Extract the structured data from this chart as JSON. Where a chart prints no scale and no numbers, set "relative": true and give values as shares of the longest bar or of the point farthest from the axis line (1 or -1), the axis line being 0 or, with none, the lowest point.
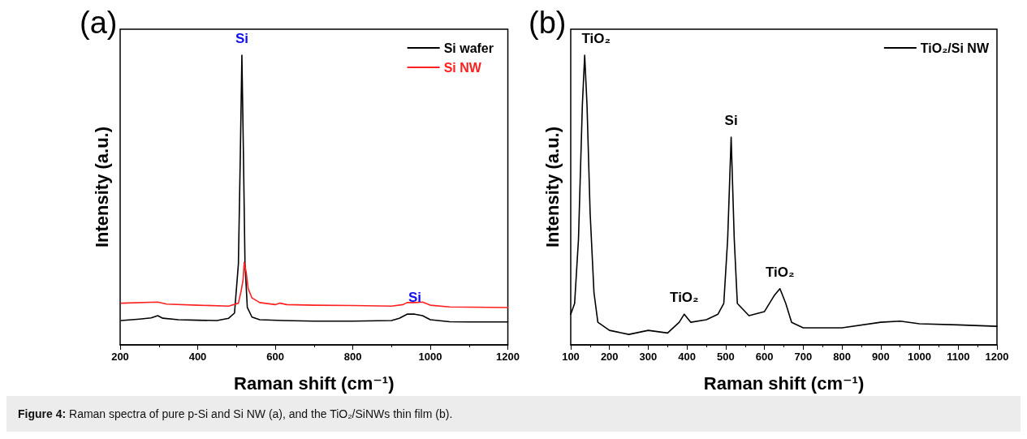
{
  "chart_data": [
    {
      "type": "line",
      "title": "(a)",
      "xlabel": "Raman shift (cm⁻¹)",
      "ylabel": "Intensity (a.u.)",
      "relative": true,
      "xlim": [
        200,
        1200
      ],
      "xticks": [
        200,
        400,
        600,
        800,
        1000,
        1200
      ],
      "legend": "top right",
      "grid": false,
      "marker": "none",
      "line_style": "solid",
      "annotations": [
        {
          "text": "Si",
          "x": 514,
          "y": 1.0
        },
        {
          "text": "Si",
          "x": 960,
          "y": 0.106
        },
        "Figure 4: Raman spectra of pure p-Si and Si NW (a), and the TiO₂/SiNWs thin film (b)."
      ],
      "series": [
        {
          "name": "Si wafer",
          "color": "#000000",
          "x": [
            203,
            250,
            280,
            297,
            310,
            350,
            400,
            450,
            480,
            495,
            505,
            510,
            514,
            518,
            522,
            528,
            540,
            560,
            620,
            700,
            800,
            900,
            920,
            940,
            960,
            980,
            1000,
            1050,
            1100,
            1200
          ],
          "values": [
            0.084,
            0.089,
            0.093,
            0.101,
            0.092,
            0.087,
            0.085,
            0.084,
            0.092,
            0.11,
            0.28,
            0.658,
            1.0,
            0.658,
            0.28,
            0.129,
            0.096,
            0.087,
            0.084,
            0.082,
            0.082,
            0.084,
            0.092,
            0.106,
            0.106,
            0.101,
            0.087,
            0.08,
            0.079,
            0.079
          ]
        },
        {
          "name": "Si NW",
          "color": "#ff2020",
          "x": [
            203,
            297,
            320,
            400,
            480,
            505,
            512,
            517,
            520,
            525,
            530,
            540,
            560,
            600,
            612,
            630,
            700,
            800,
            900,
            930,
            940,
            960,
            980,
            1000,
            1050,
            1200
          ],
          "values": [
            0.144,
            0.148,
            0.141,
            0.137,
            0.134,
            0.144,
            0.186,
            0.224,
            0.285,
            0.252,
            0.195,
            0.162,
            0.146,
            0.139,
            0.144,
            0.139,
            0.137,
            0.136,
            0.134,
            0.139,
            0.146,
            0.146,
            0.148,
            0.137,
            0.131,
            0.129
          ]
        }
      ]
    },
    {
      "type": "line",
      "title": "(b)",
      "xlabel": "Raman shift (cm⁻¹)",
      "ylabel": "Intensity (a.u.)",
      "relative": true,
      "xlim": [
        100,
        1200
      ],
      "xticks": [
        100,
        200,
        300,
        400,
        500,
        600,
        700,
        800,
        900,
        1000,
        1100,
        1200
      ],
      "legend": "top right",
      "grid": false,
      "marker": "none",
      "line_style": "solid",
      "annotations": [
        {
          "text": "TiO₂",
          "x": 136,
          "y": 1.0
        },
        {
          "text": "TiO₂",
          "x": 393,
          "y": 0.106
        },
        {
          "text": "Si",
          "x": 514,
          "y": 0.717
        },
        {
          "text": "TiO₂",
          "x": 640,
          "y": 0.194
        }
      ],
      "series": [
        {
          "name": "TiO₂/Si NW",
          "color": "#000000",
          "x": [
            100,
            110,
            120,
            130,
            136,
            142,
            150,
            160,
            170,
            200,
            250,
            300,
            350,
            380,
            393,
            410,
            450,
            480,
            495,
            505,
            514,
            522,
            530,
            560,
            600,
            625,
            640,
            655,
            670,
            700,
            800,
            900,
            950,
            1000,
            1100,
            1200
          ],
          "values": [
            0.106,
            0.143,
            0.365,
            0.828,
            1.0,
            0.828,
            0.457,
            0.18,
            0.078,
            0.05,
            0.036,
            0.05,
            0.041,
            0.078,
            0.106,
            0.078,
            0.087,
            0.106,
            0.143,
            0.365,
            0.717,
            0.365,
            0.143,
            0.101,
            0.115,
            0.17,
            0.194,
            0.143,
            0.078,
            0.059,
            0.059,
            0.078,
            0.082,
            0.073,
            0.069,
            0.064
          ]
        }
      ]
    }
  ]
}
